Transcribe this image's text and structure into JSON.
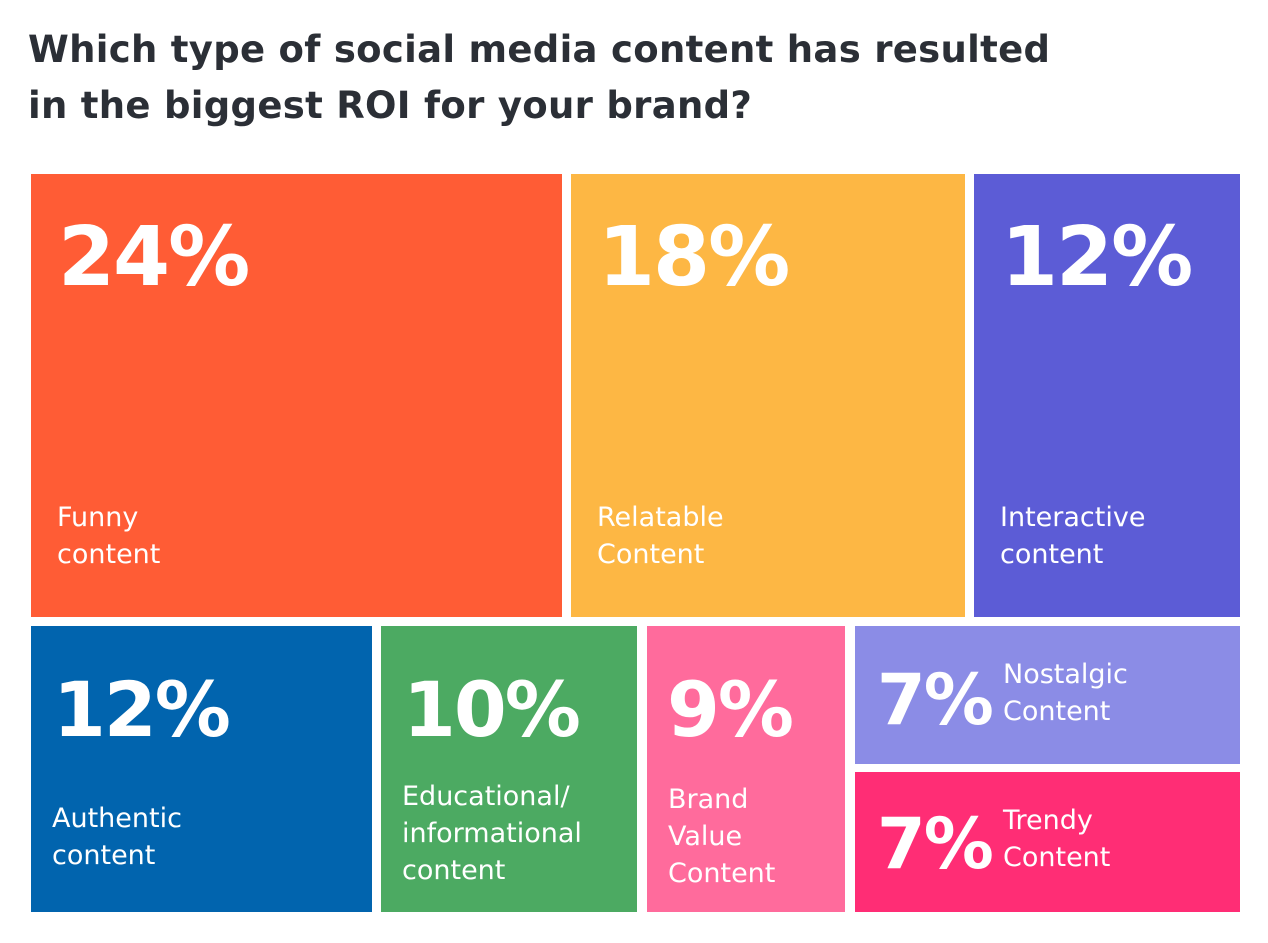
{
  "title_lines": [
    "Which type of social media content has resulted",
    "in the biggest ROI for your brand?"
  ],
  "chart_data": {
    "type": "treemap",
    "unit": "%",
    "items": [
      {
        "label": "Funny content",
        "label_lines": [
          "Funny",
          "content"
        ],
        "value": 24,
        "value_text": "24%",
        "color": "#FF5C35"
      },
      {
        "label": "Relatable Content",
        "label_lines": [
          "Relatable",
          "Content"
        ],
        "value": 18,
        "value_text": "18%",
        "color": "#FDB744"
      },
      {
        "label": "Interactive content",
        "label_lines": [
          "Interactive",
          "content"
        ],
        "value": 12,
        "value_text": "12%",
        "color": "#5C5CD6"
      },
      {
        "label": "Authentic content",
        "label_lines": [
          "Authentic",
          "content"
        ],
        "value": 12,
        "value_text": "12%",
        "color": "#0164AE"
      },
      {
        "label": "Educational/informational content",
        "label_lines": [
          "Educational/",
          "informational",
          "content"
        ],
        "value": 10,
        "value_text": "10%",
        "color": "#4CAA62"
      },
      {
        "label": "Brand Value Content",
        "label_lines": [
          "Brand",
          "Value",
          "Content"
        ],
        "value": 9,
        "value_text": "9%",
        "color": "#FF6B9C"
      },
      {
        "label": "Nostalgic Content",
        "label_lines": [
          "Nostalgic",
          "Content"
        ],
        "value": 7,
        "value_text": "7%",
        "color": "#8B8CE6"
      },
      {
        "label": "Trendy Content",
        "label_lines": [
          "Trendy",
          "Content"
        ],
        "value": 7,
        "value_text": "7%",
        "color": "#FF2D75"
      }
    ]
  }
}
